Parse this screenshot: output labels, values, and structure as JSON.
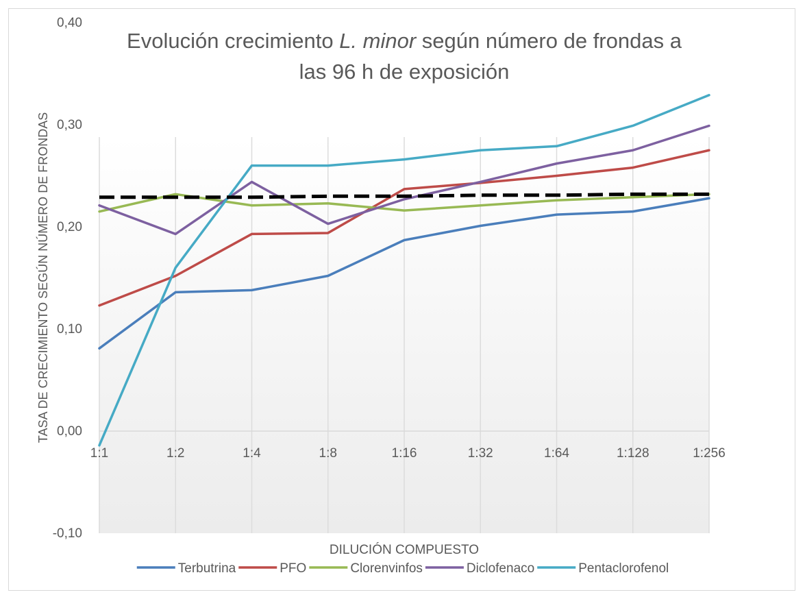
{
  "chart_data": {
    "type": "line",
    "title": [
      "Evolución crecimiento",
      "L. minor",
      "según número de frondas a",
      "las 96 h de exposición"
    ],
    "x_label": "DILUCIÓN COMPUESTO",
    "y_label": "TASA DE CRECIMIENTO SEGÚN NÚMERO DE FRONDAS",
    "categories": [
      "1:1",
      "1:2",
      "1:4",
      "1:8",
      "1:16",
      "1:32",
      "1:64",
      "1:128",
      "1:256"
    ],
    "ylim": [
      -0.1,
      0.4
    ],
    "yticks": [
      {
        "value": -0.1,
        "label": "-0,10"
      },
      {
        "value": 0,
        "label": "0,00"
      },
      {
        "value": 0.1,
        "label": "0,10"
      },
      {
        "value": 0.2,
        "label": "0,20"
      },
      {
        "value": 0.3,
        "label": "0,30"
      },
      {
        "value": 0.4,
        "label": "0,40"
      }
    ],
    "grid": "vertical",
    "legend": "bottom",
    "series": [
      {
        "name": "Terbutrina",
        "color": "#4a7ebb",
        "values": [
          0.081,
          0.136,
          0.138,
          0.152,
          0.187,
          0.201,
          0.212,
          0.215,
          0.228
        ]
      },
      {
        "name": "PFO",
        "color": "#be4b48",
        "values": [
          0.123,
          0.152,
          0.193,
          0.194,
          0.237,
          0.243,
          0.25,
          0.258,
          0.275
        ]
      },
      {
        "name": "Clorenvinfos",
        "color": "#98b954",
        "values": [
          0.215,
          0.232,
          0.221,
          0.223,
          0.216,
          0.221,
          0.226,
          0.229,
          0.232
        ]
      },
      {
        "name": "Diclofenaco",
        "color": "#7d60a0",
        "values": [
          0.221,
          0.193,
          0.244,
          0.203,
          0.227,
          0.244,
          0.262,
          0.275,
          0.299
        ]
      },
      {
        "name": "Pentaclorofenol",
        "color": "#46aac5",
        "values": [
          -0.014,
          0.16,
          0.26,
          0.26,
          0.266,
          0.275,
          0.279,
          0.299,
          0.329
        ]
      },
      {
        "color": "#000000",
        "dashed": true,
        "values": [
          0.229,
          0.229,
          0.229,
          0.23,
          0.23,
          0.231,
          0.231,
          0.232,
          0.232
        ]
      }
    ]
  }
}
